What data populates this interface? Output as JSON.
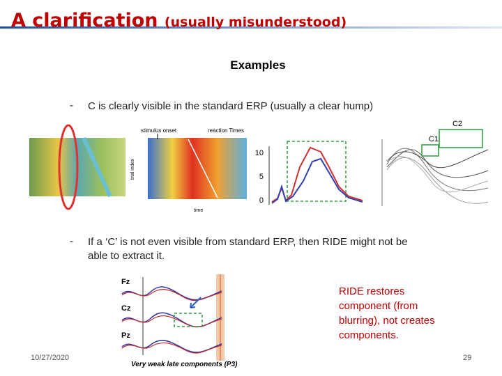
{
  "header": {
    "title": "A clarification",
    "subtitle": "(usually misunderstood)"
  },
  "section": "Examples",
  "bullets": [
    {
      "marker": "-",
      "text": "C is clearly visible in the standard ERP (usually a clear hump)"
    },
    {
      "marker": "-",
      "text": "If a ‘C’ is not even visible from standard ERP, then RIDE might not be able to extract it."
    }
  ],
  "figure1": {
    "labels": {
      "stimulus": "stimulus onset",
      "reaction": "reaction Times",
      "time": "time",
      "trial": "trial index",
      "c2": "C2",
      "c1": "C1"
    },
    "erp_ticks": [
      "0",
      "5",
      "10"
    ]
  },
  "figure2": {
    "channels": [
      "Fz",
      "Cz",
      "Pz"
    ],
    "caption": "Very weak late components (P3)"
  },
  "note": "RIDE restores component (from blurring), not creates components.",
  "footer": {
    "date": "10/27/2020",
    "page": "29"
  }
}
